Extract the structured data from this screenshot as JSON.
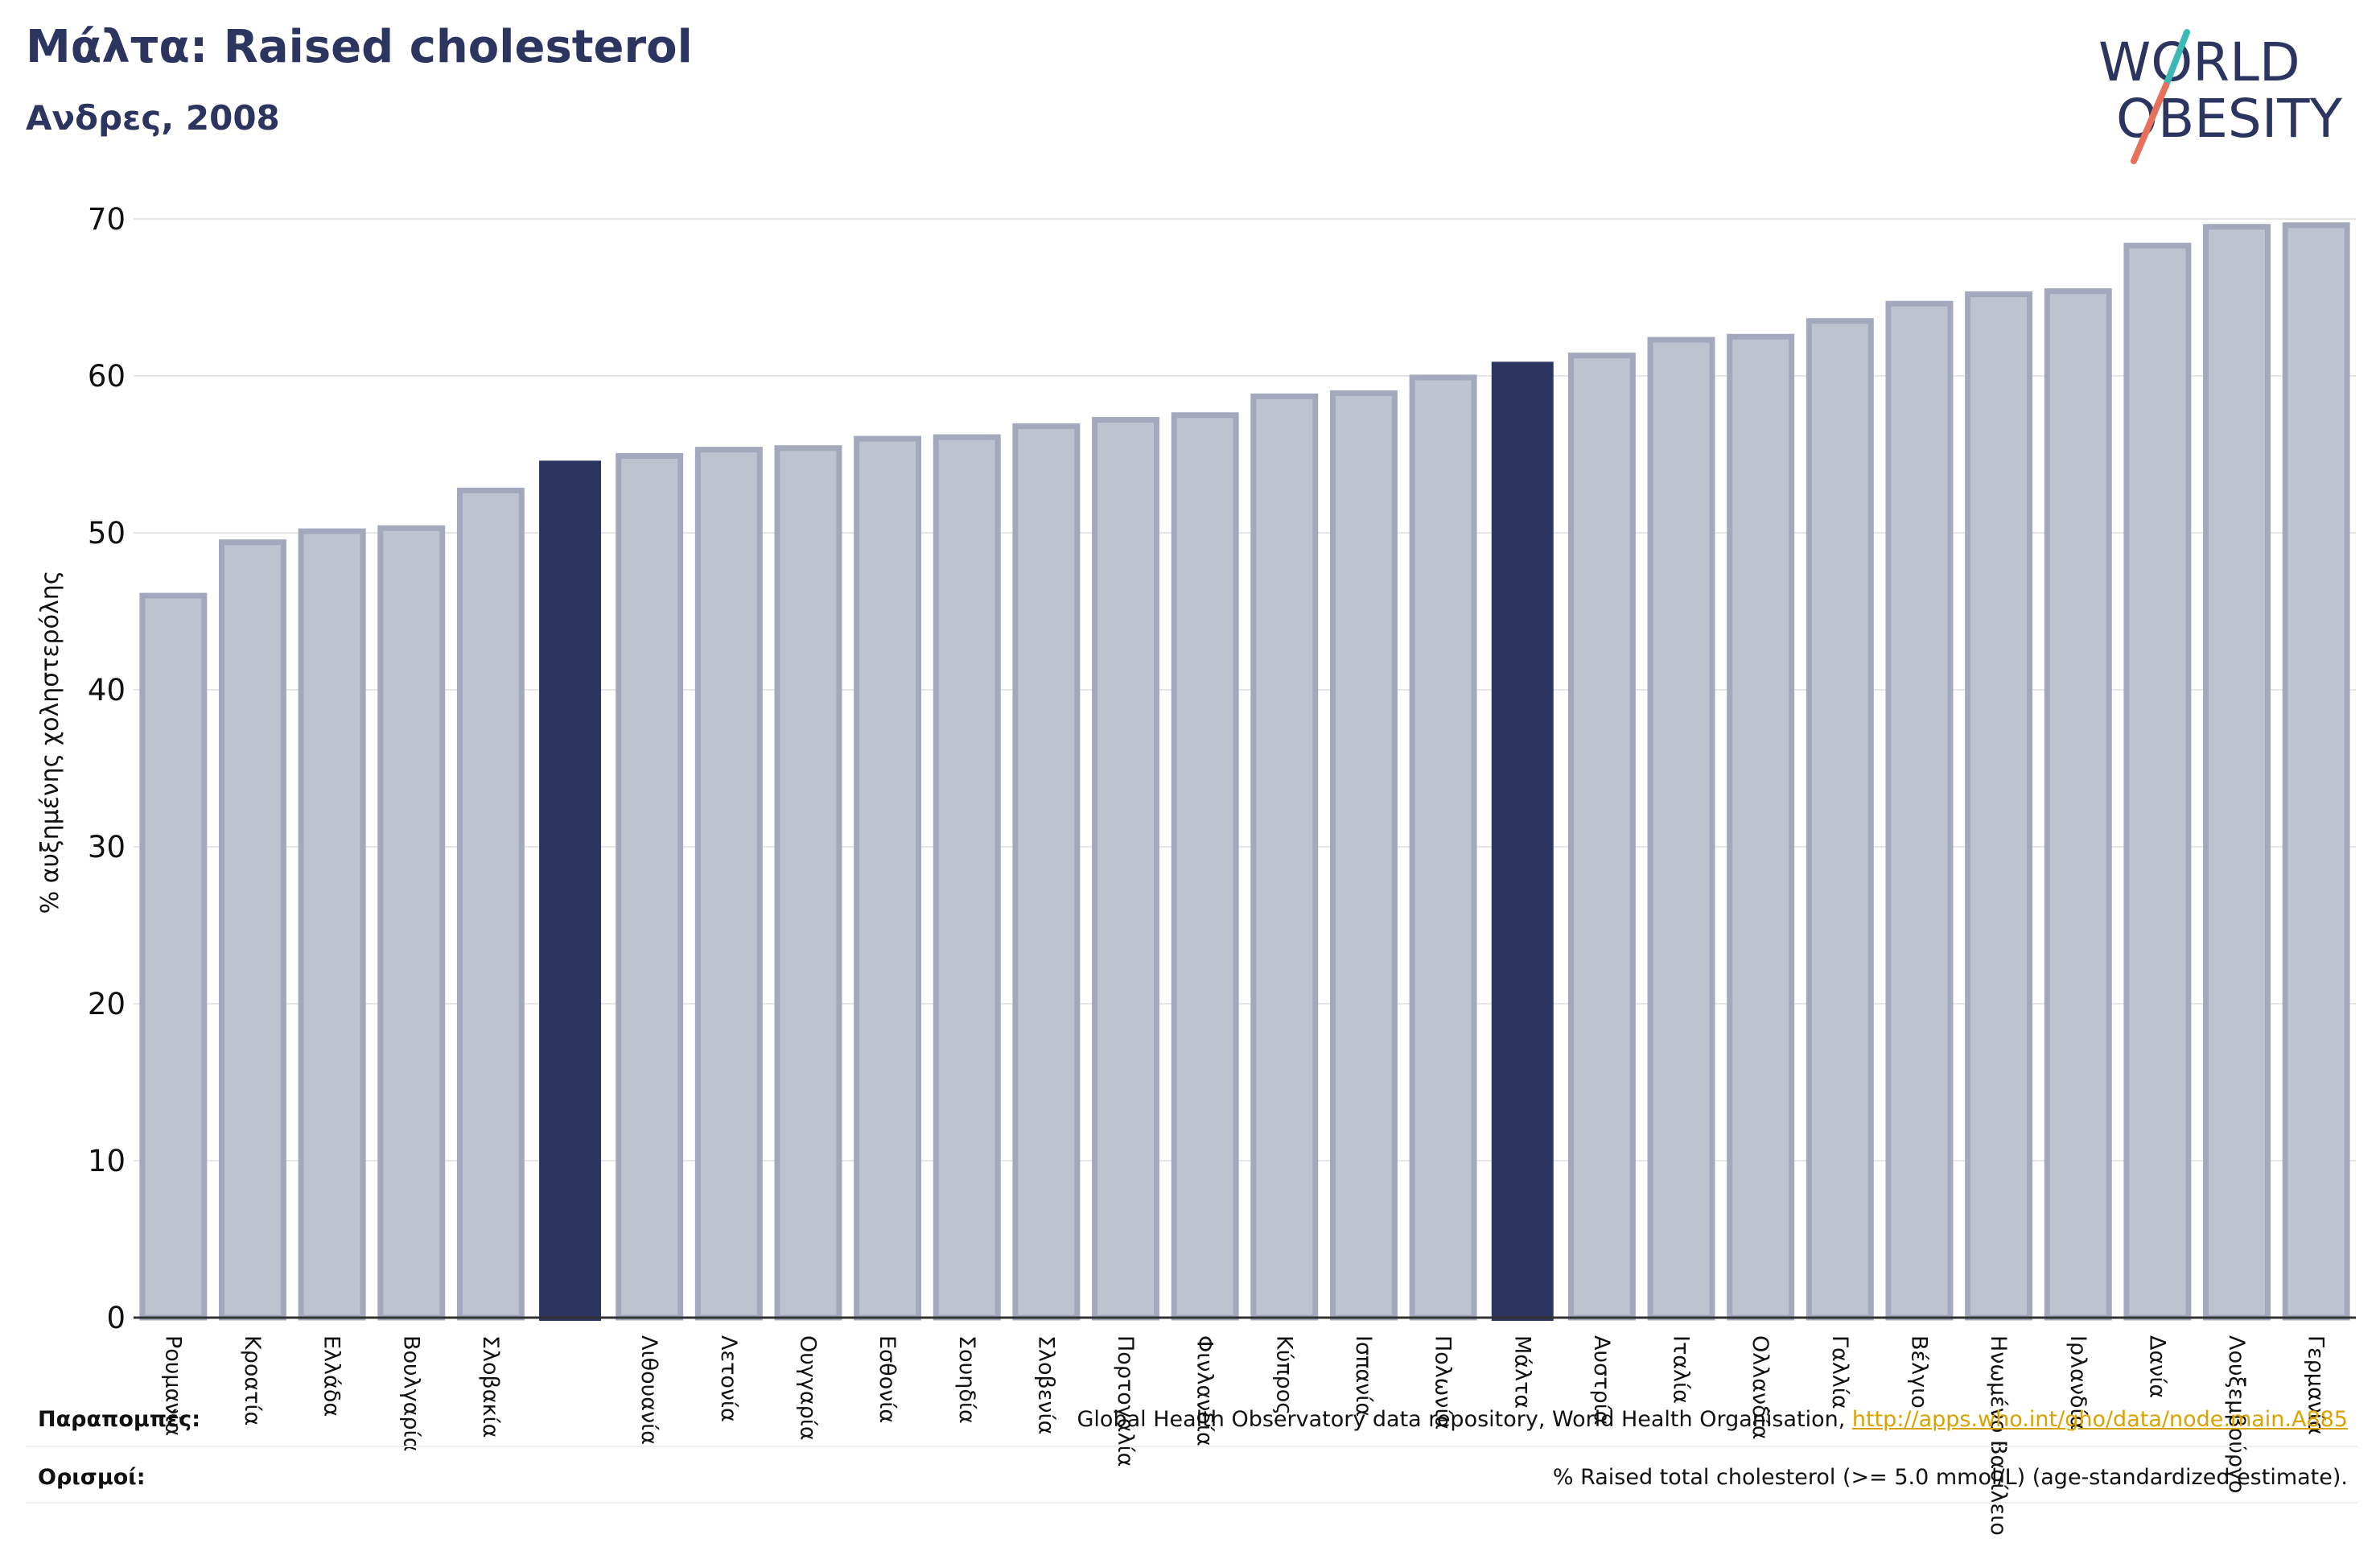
{
  "header": {
    "title": "Μάλτα: Raised cholesterol",
    "subtitle": "Ανδρες, 2008"
  },
  "logo": {
    "line1": "WORLD",
    "line2": "OBESITY",
    "text_color": "#2b355f",
    "slash_top_color": "#3cb8b5",
    "slash_bottom_color": "#e8705a"
  },
  "chart_data": {
    "type": "bar",
    "ylabel": "% αυξημένης χοληστερόλης",
    "ylim": [
      0,
      70
    ],
    "yticks": [
      0,
      10,
      20,
      30,
      40,
      50,
      60,
      70
    ],
    "grid": true,
    "bar_color": "#bfc2cf",
    "bar_edge_color": "#a4a8bd",
    "highlight_color": "#2b355f",
    "categories": [
      "Ρουμανία",
      "Κροατία",
      "Ελλάδα",
      "Βουλγαρία",
      "Σλοβακία",
      "",
      "Λιθουανία",
      "Λετονία",
      "Ουγγαρία",
      "Εσθονία",
      "Σουηδία",
      "Σλοβενία",
      "Πορτογαλία",
      "Φινλανδία",
      "Κύπρος",
      "Ισπανία",
      "Πολωνία",
      "Μάλτα",
      "Αυστρία",
      "Ιταλία",
      "Ολλανδία",
      "Γαλλία",
      "Βέλγιο",
      "Ηνωμένο Βασίλειο",
      "Ιρλανδία",
      "Δανία",
      "Λουξεμβούργο",
      "Γερμανία"
    ],
    "values": [
      46.0,
      49.4,
      50.1,
      50.3,
      52.7,
      54.6,
      54.9,
      55.3,
      55.4,
      56.0,
      56.1,
      56.8,
      57.2,
      57.5,
      58.7,
      58.9,
      59.9,
      60.9,
      61.3,
      62.3,
      62.5,
      63.5,
      64.6,
      65.2,
      65.4,
      68.3,
      69.5,
      69.6
    ],
    "highlighted": [
      5,
      17
    ]
  },
  "footer": {
    "references_label": "Παραπομπές:",
    "references_text": "Global Health Observatory data repository, World Health Organisation, ",
    "references_link": "http://apps.who.int/gho/data/node.main.A885",
    "definitions_label": "Ορισμοί:",
    "definitions_text": "% Raised total cholesterol (>= 5.0 mmol/L) (age-standardized estimate)."
  }
}
